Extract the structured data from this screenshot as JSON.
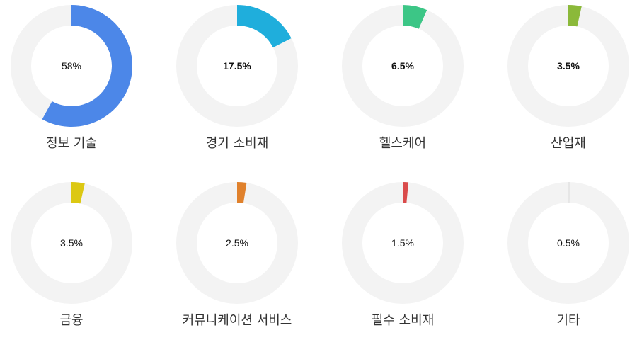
{
  "chart_data": {
    "type": "pie",
    "style": "donut",
    "categories": [
      "정보 기술",
      "경기 소비재",
      "헬스케어",
      "산업재",
      "금융",
      "커뮤니케이션 서비스",
      "필수 소비재",
      "기타"
    ],
    "values": [
      58,
      17.5,
      6.5,
      3.5,
      3.5,
      2.5,
      1.5,
      0.5
    ],
    "value_labels": [
      "58%",
      "17.5%",
      "6.5%",
      "3.5%",
      "3.5%",
      "2.5%",
      "1.5%",
      "0.5%"
    ],
    "bold_labels": [
      false,
      true,
      true,
      true,
      false,
      false,
      false,
      false
    ],
    "colors": [
      "#4C87E8",
      "#1FAEDC",
      "#3CC686",
      "#8BB93A",
      "#DCC813",
      "#E0812C",
      "#DA4B4B",
      "#E6E6E6"
    ],
    "track_color": "#F3F3F3",
    "ylim": [
      0,
      100
    ],
    "title": "",
    "xlabel": "",
    "ylabel": ""
  }
}
